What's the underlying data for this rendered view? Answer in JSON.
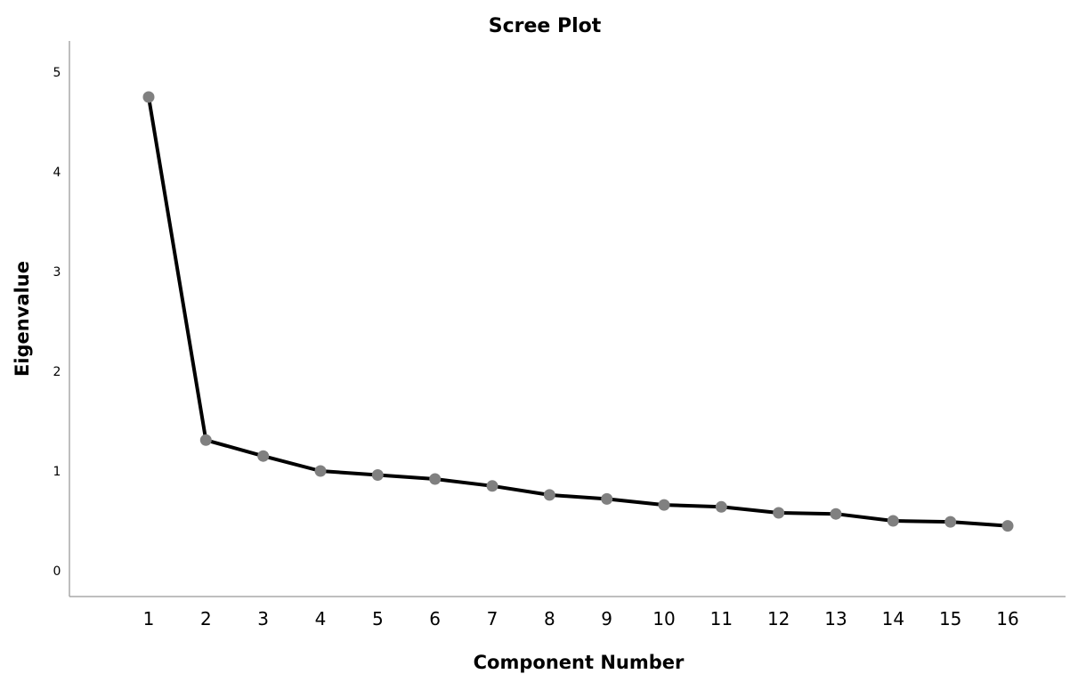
{
  "chart_data": {
    "type": "line",
    "title": "Scree Plot",
    "xlabel": "Component Number",
    "ylabel": "Eigenvalue",
    "x": [
      1,
      2,
      3,
      4,
      5,
      6,
      7,
      8,
      9,
      10,
      11,
      12,
      13,
      14,
      15,
      16
    ],
    "y_ticks": [
      "0",
      "1",
      "2",
      "3",
      "4",
      "5"
    ],
    "x_ticks": [
      "1",
      "2",
      "3",
      "4",
      "5",
      "6",
      "7",
      "8",
      "9",
      "10",
      "11",
      "12",
      "13",
      "14",
      "15",
      "16"
    ],
    "series": [
      {
        "values": [
          4.75,
          1.31,
          1.15,
          1.0,
          0.96,
          0.92,
          0.85,
          0.76,
          0.72,
          0.66,
          0.64,
          0.58,
          0.57,
          0.5,
          0.49,
          0.45
        ],
        "line_color": "#000000",
        "marker_color": "#808080"
      }
    ],
    "ylim": [
      0,
      5
    ],
    "xlim": [
      1,
      16
    ],
    "grid": false,
    "legend": "none"
  }
}
